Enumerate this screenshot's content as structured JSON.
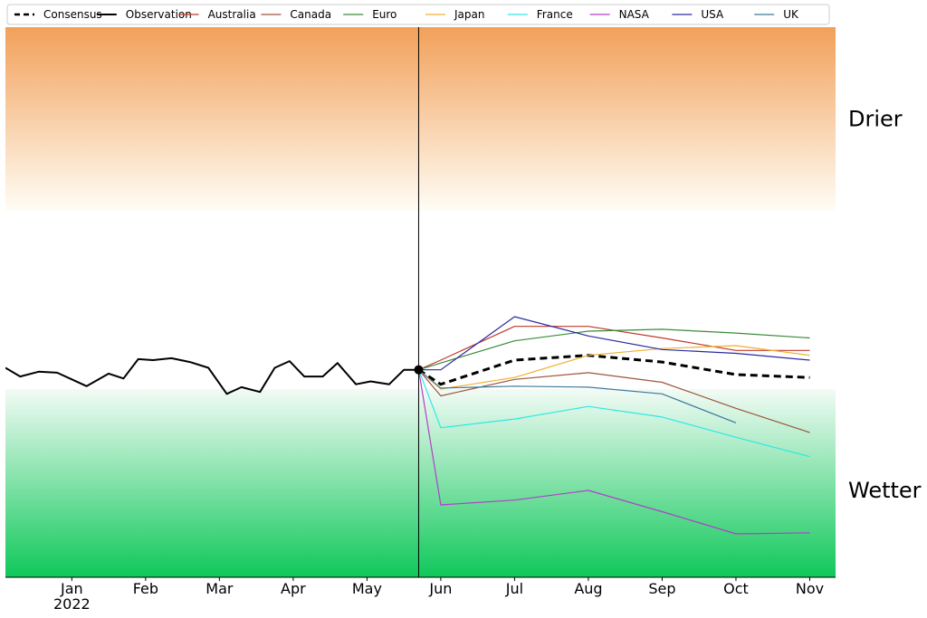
{
  "chart_data": {
    "type": "line",
    "title": "",
    "xlabel": "",
    "ylabel": "",
    "ylim": [
      -2.6,
      3.1
    ],
    "x_ticks": [
      {
        "label": "Jan",
        "sub": "2022",
        "x": 0
      },
      {
        "label": "Feb",
        "x": 1
      },
      {
        "label": "Mar",
        "x": 2
      },
      {
        "label": "Apr",
        "x": 3
      },
      {
        "label": "May",
        "x": 4
      },
      {
        "label": "Jun",
        "x": 5
      },
      {
        "label": "Jul",
        "x": 6
      },
      {
        "label": "Aug",
        "x": 7
      },
      {
        "label": "Sep",
        "x": 8
      },
      {
        "label": "Oct",
        "x": 9
      },
      {
        "label": "Nov",
        "x": 10
      }
    ],
    "xlim": [
      -0.9,
      10.35
    ],
    "forecast_start": 4.7,
    "zones": [
      {
        "label": "Drier",
        "from": 1.2,
        "to": 3.1,
        "color_edge": "#f2a05a",
        "color_inner": "#fffdf5"
      },
      {
        "label": "Wetter",
        "from": -2.6,
        "to": -0.65,
        "color_edge": "#0fc85a",
        "color_inner": "#f2fbf5"
      }
    ],
    "legend_position": "top",
    "series": [
      {
        "name": "Consensus",
        "color": "#000000",
        "dash": true,
        "x": [
          4.7,
          5,
          6,
          7,
          8,
          9,
          10
        ],
        "y": [
          -0.45,
          -0.6,
          -0.35,
          -0.3,
          -0.37,
          -0.5,
          -0.53
        ]
      },
      {
        "name": "Observation",
        "color": "#000000",
        "dash": false,
        "x": [
          -0.9,
          -0.7,
          -0.45,
          -0.2,
          0,
          0.2,
          0.5,
          0.7,
          0.9,
          1.1,
          1.35,
          1.6,
          1.85,
          2.1,
          2.3,
          2.55,
          2.75,
          2.95,
          3.15,
          3.4,
          3.6,
          3.85,
          4.05,
          4.3,
          4.5,
          4.7
        ],
        "y": [
          -0.43,
          -0.52,
          -0.47,
          -0.48,
          -0.55,
          -0.62,
          -0.49,
          -0.54,
          -0.34,
          -0.35,
          -0.33,
          -0.37,
          -0.43,
          -0.7,
          -0.63,
          -0.68,
          -0.43,
          -0.36,
          -0.52,
          -0.52,
          -0.38,
          -0.6,
          -0.57,
          -0.6,
          -0.45,
          -0.45
        ]
      },
      {
        "name": "Australia",
        "color": "#c0392b",
        "dash": false,
        "x": [
          4.7,
          5,
          6,
          7,
          8,
          9,
          10
        ],
        "y": [
          -0.45,
          -0.35,
          0.0,
          0.0,
          -0.12,
          -0.25,
          -0.25
        ]
      },
      {
        "name": "Canada",
        "color": "#9e5540",
        "dash": false,
        "x": [
          4.7,
          5,
          6,
          7,
          8,
          9,
          10
        ],
        "y": [
          -0.45,
          -0.72,
          -0.55,
          -0.48,
          -0.58,
          -0.85,
          -1.1
        ]
      },
      {
        "name": "Euro",
        "color": "#3a8a3a",
        "dash": false,
        "x": [
          4.7,
          5,
          6,
          7,
          8,
          9,
          10
        ],
        "y": [
          -0.45,
          -0.38,
          -0.15,
          -0.05,
          -0.03,
          -0.07,
          -0.12
        ]
      },
      {
        "name": "Japan",
        "color": "#f0b030",
        "dash": false,
        "x": [
          4.7,
          5,
          6,
          7,
          8,
          9,
          10
        ],
        "y": [
          -0.45,
          -0.65,
          -0.53,
          -0.3,
          -0.23,
          -0.2,
          -0.3
        ]
      },
      {
        "name": "France",
        "color": "#2ee8e8",
        "dash": false,
        "x": [
          4.7,
          5,
          6,
          7,
          8,
          9,
          10
        ],
        "y": [
          -0.45,
          -1.05,
          -0.96,
          -0.83,
          -0.94,
          -1.15,
          -1.35
        ]
      },
      {
        "name": "NASA",
        "color": "#b040c8",
        "dash": false,
        "x": [
          4.7,
          5,
          6,
          7,
          8,
          9,
          10
        ],
        "y": [
          -0.45,
          -1.85,
          -1.8,
          -1.7,
          -1.92,
          -2.15,
          -2.14
        ]
      },
      {
        "name": "USA",
        "color": "#2a2aa0",
        "dash": false,
        "x": [
          4.7,
          5,
          6,
          7,
          8,
          9,
          10
        ],
        "y": [
          -0.45,
          -0.45,
          0.1,
          -0.1,
          -0.24,
          -0.28,
          -0.35
        ]
      },
      {
        "name": "UK",
        "color": "#3a7a9a",
        "dash": false,
        "x": [
          4.7,
          5,
          6,
          7,
          8,
          9
        ],
        "y": [
          -0.45,
          -0.64,
          -0.62,
          -0.63,
          -0.7,
          -1.0
        ]
      }
    ]
  }
}
